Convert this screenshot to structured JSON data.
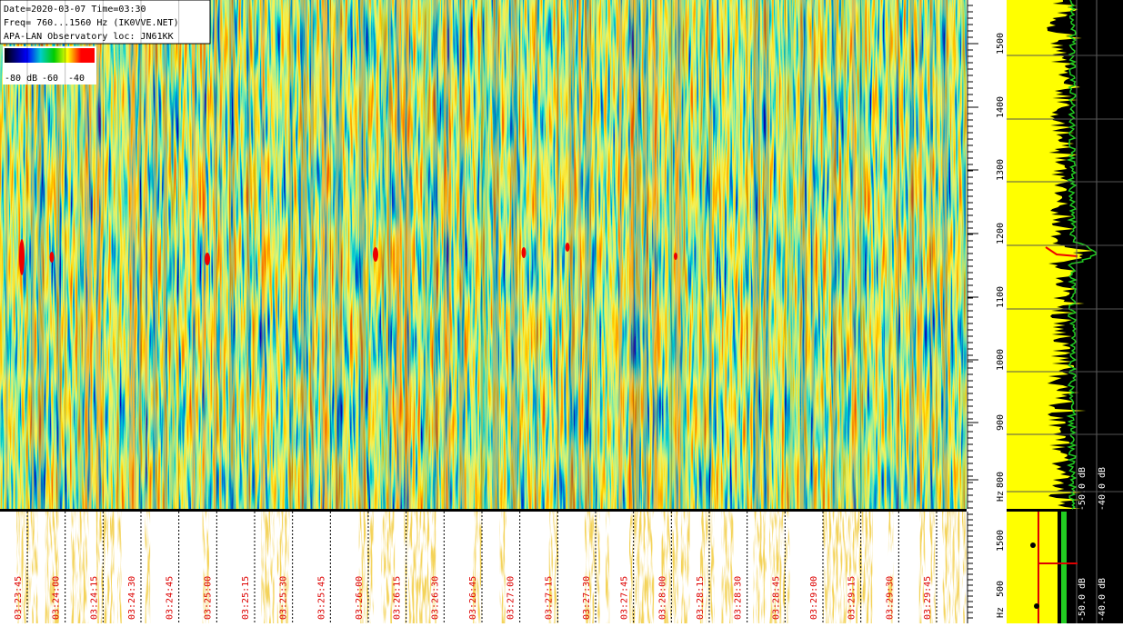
{
  "header": {
    "lines": [
      "Date=2020-03-07 Time=03:30",
      "Freq= 760...1560 Hz (IK0VVE.NET)",
      "APA-LAN Observatory loc: JN61KK"
    ]
  },
  "colorbar": {
    "labels": [
      "-80 dB",
      "-60",
      "-40"
    ]
  },
  "freq_axis": {
    "ticks": [
      "1500",
      "1400",
      "1300",
      "1200",
      "1100",
      "1000",
      "900",
      "800"
    ],
    "unit": "Hz"
  },
  "spectrum": {
    "labels": [
      "-50.0 dB",
      "-40.0 dB"
    ]
  },
  "time_axis": {
    "labels": [
      "03:23:45",
      "03:24:00",
      "03:24:15",
      "03:24:30",
      "03:24:45",
      "03:25:00",
      "03:25:15",
      "03:25:30",
      "03:25:45",
      "03:26:00",
      "03:26:15",
      "03:26:30",
      "03:26:45",
      "03:27:00",
      "03:27:15",
      "03:27:30",
      "03:27:45",
      "03:28:00",
      "03:28:15",
      "03:28:30",
      "03:28:45",
      "03:29:00",
      "03:29:15",
      "03:29:30",
      "03:29:45"
    ]
  },
  "bottom_freq_axis": {
    "ticks": [
      "1500",
      "500"
    ],
    "unit": "Hz"
  },
  "bottom_spectrum": {
    "labels": [
      "-50.0 dB",
      "-40.0 dB"
    ]
  }
}
